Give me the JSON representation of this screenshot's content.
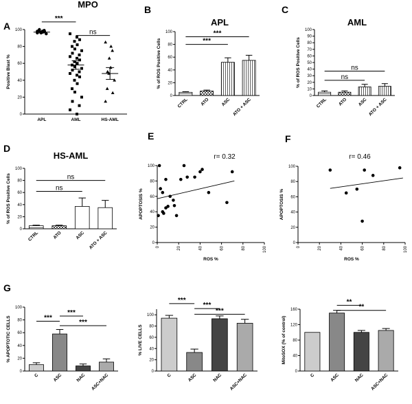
{
  "chart_data": [
    {
      "id": "A",
      "panel_label": "A",
      "type": "scatter",
      "title": "MPO",
      "ylabel": "Positive Blast %",
      "ylim": [
        0,
        100
      ],
      "yticks": [
        0,
        20,
        40,
        60,
        80,
        100
      ],
      "categories": [
        "APL",
        "AML",
        "HS-AML"
      ],
      "markers": [
        "circle",
        "square",
        "triangle"
      ],
      "groups": [
        {
          "name": "APL",
          "values": [
            98,
            97,
            99,
            96,
            98,
            100,
            97,
            95,
            99,
            98,
            96,
            97
          ],
          "mean": 97,
          "sem": 1
        },
        {
          "name": "AML",
          "values": [
            95,
            91,
            88,
            86,
            82,
            80,
            77,
            75,
            72,
            70,
            68,
            66,
            64,
            62,
            60,
            58,
            56,
            54,
            52,
            50,
            48,
            46,
            44,
            40,
            36,
            30,
            26,
            20,
            15,
            10,
            5,
            0
          ],
          "mean": 58,
          "sem": 5
        },
        {
          "name": "HS-AML",
          "values": [
            85,
            80,
            75,
            66,
            55,
            50,
            48,
            40,
            30,
            25,
            15
          ],
          "mean": 48,
          "sem": 7
        }
      ],
      "annotations": [
        {
          "text": "***",
          "from": 0,
          "to": 1,
          "y": 109
        },
        {
          "text": "ns",
          "from": 1,
          "to": 2,
          "y": 93
        }
      ]
    },
    {
      "id": "B",
      "panel_label": "B",
      "type": "bar",
      "title": "APL",
      "ylabel": "% of ROS Positive Cells",
      "ylim": [
        0,
        100
      ],
      "yticks": [
        0,
        20,
        40,
        60,
        80,
        100
      ],
      "categories": [
        "CTRL",
        "ATO",
        "ASC",
        "ATO + ASC"
      ],
      "values": [
        5,
        7,
        52,
        55
      ],
      "errors": [
        1,
        1.5,
        7,
        8
      ],
      "fills": [
        "hstripe",
        "check",
        "vstripe",
        "vstripe"
      ],
      "annotations": [
        {
          "text": "***",
          "from": 0,
          "to": 3,
          "y": 92
        },
        {
          "text": "***",
          "from": 0,
          "to": 2,
          "y": 80
        }
      ]
    },
    {
      "id": "C",
      "panel_label": "C",
      "type": "bar",
      "title": "AML",
      "ylabel": "% of ROS Positive Cells",
      "ylim": [
        0,
        100
      ],
      "yticks": [
        0,
        10,
        20,
        30,
        40,
        50,
        60,
        70,
        80,
        90,
        100
      ],
      "categories": [
        "CTRL",
        "ATO",
        "ASC",
        "ATO + ASC"
      ],
      "values": [
        5,
        5,
        13,
        14
      ],
      "errors": [
        2,
        2,
        4,
        4
      ],
      "fills": [
        "hstripe",
        "check",
        "vstripe",
        "vstripe"
      ],
      "annotations": [
        {
          "text": "ns",
          "from": 0,
          "to": 3,
          "y": 37
        },
        {
          "text": "ns",
          "from": 0,
          "to": 2,
          "y": 23
        }
      ]
    },
    {
      "id": "D",
      "panel_label": "D",
      "type": "bar",
      "title": "HS-AML",
      "ylabel": "% of ROS Positive Cells",
      "ylim": [
        0,
        100
      ],
      "yticks": [
        0,
        20,
        40,
        60,
        80,
        100
      ],
      "categories": [
        "CTRL",
        "ATO",
        "ASC",
        "ATO + ASC"
      ],
      "values": [
        5,
        5,
        37,
        35
      ],
      "errors": [
        1,
        1,
        14,
        12
      ],
      "fills": [
        "hstripe",
        "check",
        "white",
        "white"
      ],
      "annotations": [
        {
          "text": "ns",
          "from": 0,
          "to": 3,
          "y": 80
        },
        {
          "text": "ns",
          "from": 0,
          "to": 2,
          "y": 62
        }
      ]
    },
    {
      "id": "E",
      "panel_label": "E",
      "type": "scatter",
      "title": "r= 0.32",
      "xlabel": "ROS %",
      "ylabel": "APOPTOSIS %",
      "xlim": [
        0,
        100
      ],
      "ylim": [
        0,
        100
      ],
      "xticks": [
        0,
        20,
        40,
        60,
        80,
        100
      ],
      "yticks": [
        0,
        20,
        40,
        60,
        80,
        100
      ],
      "x": [
        1,
        2,
        3,
        5,
        5,
        6,
        8,
        8,
        10,
        12,
        15,
        16,
        18,
        22,
        25,
        28,
        35,
        40,
        42,
        48,
        65,
        70
      ],
      "y": [
        35,
        100,
        70,
        65,
        40,
        38,
        82,
        45,
        47,
        60,
        55,
        48,
        35,
        82,
        100,
        85,
        85,
        92,
        95,
        65,
        52,
        92
      ],
      "trend": {
        "slope": 0.32,
        "intercept": 57
      }
    },
    {
      "id": "F",
      "panel_label": "F",
      "type": "scatter",
      "title": "r= 0.46",
      "xlabel": "ROS %",
      "ylabel": "APOPTOSIS %",
      "xlim": [
        0,
        100
      ],
      "ylim": [
        0,
        100
      ],
      "xticks": [
        0,
        20,
        40,
        60,
        80,
        100
      ],
      "yticks": [
        0,
        20,
        40,
        60,
        80,
        100
      ],
      "x": [
        30,
        45,
        55,
        60,
        62,
        70,
        95
      ],
      "y": [
        95,
        65,
        70,
        28,
        95,
        88,
        98
      ],
      "trend": {
        "slope": 0.2,
        "intercept": 65
      }
    },
    {
      "id": "G1",
      "panel_label": "G",
      "type": "bar",
      "ylabel": "% APOPTOTIC CELLS",
      "ylim": [
        0,
        100
      ],
      "yticks": [
        0,
        20,
        40,
        60,
        80,
        100
      ],
      "categories": [
        "C",
        "ASC",
        "NAC",
        "ASC+NAC"
      ],
      "values": [
        10,
        58,
        8,
        14
      ],
      "errors": [
        3,
        7,
        3,
        5
      ],
      "colors": [
        "#cccccc",
        "#888888",
        "#444444",
        "#aaaaaa"
      ],
      "annotations": [
        {
          "text": "***",
          "from": 0,
          "to": 1,
          "y": 78
        },
        {
          "text": "***",
          "from": 1,
          "to": 2,
          "y": 86
        },
        {
          "text": "***",
          "from": 1,
          "to": 3,
          "y": 71
        }
      ]
    },
    {
      "id": "G2",
      "panel_label": "",
      "type": "bar",
      "ylabel": "% LIVE CELLS",
      "ylim": [
        0,
        110
      ],
      "yticks": [
        0,
        20,
        40,
        60,
        80,
        100
      ],
      "categories": [
        "C",
        "ASC",
        "NAC",
        "ASC+NAC"
      ],
      "values": [
        94,
        33,
        93,
        85
      ],
      "errors": [
        5,
        6,
        5,
        7
      ],
      "colors": [
        "#cccccc",
        "#888888",
        "#444444",
        "#aaaaaa"
      ],
      "annotations": [
        {
          "text": "***",
          "from": 0,
          "to": 1,
          "y": 120
        },
        {
          "text": "***",
          "from": 1,
          "to": 2,
          "y": 111
        },
        {
          "text": "***",
          "from": 1,
          "to": 3,
          "y": 101
        }
      ]
    },
    {
      "id": "G3",
      "panel_label": "",
      "type": "bar",
      "ylabel": "MitoSOX (% of control)",
      "ylim": [
        0,
        160
      ],
      "yticks": [
        0,
        40,
        80,
        120,
        160
      ],
      "categories": [
        "C",
        "ASC",
        "NAC",
        "ASC+NAC"
      ],
      "values": [
        100,
        150,
        100,
        105
      ],
      "errors": [
        0,
        7,
        5,
        5
      ],
      "colors": [
        "#cccccc",
        "#888888",
        "#444444",
        "#aaaaaa"
      ],
      "annotations": [
        {
          "text": "**",
          "from": 1,
          "to": 2,
          "y": 170
        },
        {
          "text": "**",
          "from": 1,
          "to": 3,
          "y": 157
        }
      ]
    }
  ]
}
